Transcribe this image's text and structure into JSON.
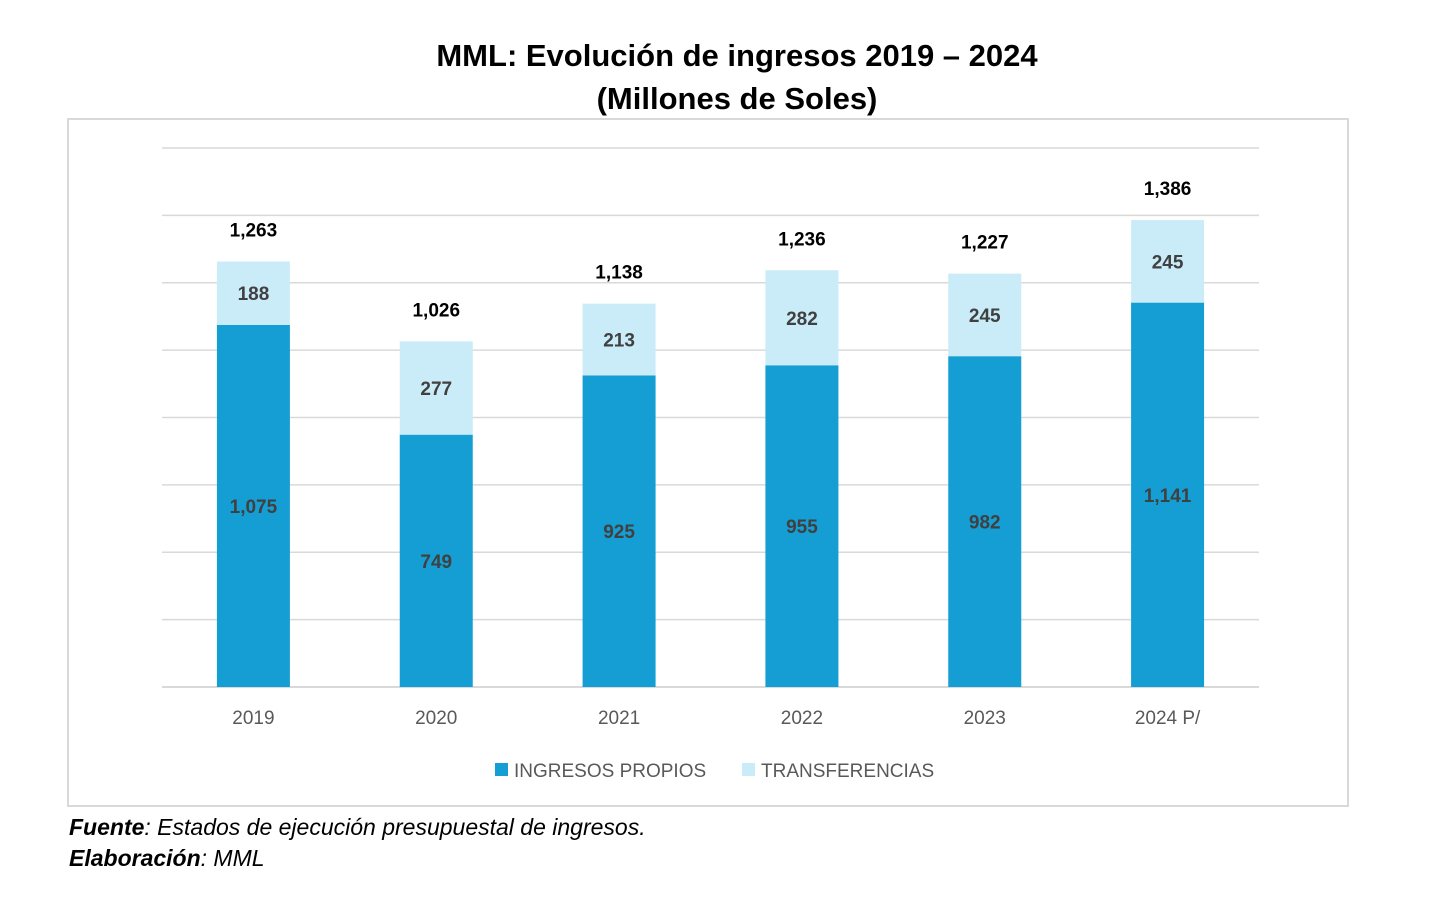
{
  "title_line1": "MML: Evolución de ingresos 2019 – 2024",
  "title_line2": "(Millones de Soles)",
  "footer": {
    "source_label": "Fuente",
    "source_text": ": Estados de ejecución presupuestal de ingresos.",
    "credit_label": "Elaboración",
    "credit_text": ": MML"
  },
  "colors": {
    "propios": "#159ed3",
    "transferencias": "#c9ecf8",
    "grid": "#d9d9d9",
    "inner_label": "#404040",
    "total_label": "#000000",
    "tick_label": "#595959"
  },
  "chart_data": {
    "type": "bar",
    "stacked": true,
    "categories": [
      "2019",
      "2020",
      "2021",
      "2022",
      "2023",
      "2024 P/"
    ],
    "series": [
      {
        "name": "INGRESOS PROPIOS",
        "values": [
          1075,
          749,
          925,
          955,
          982,
          1141
        ],
        "labels": [
          "1,075",
          "749",
          "925",
          "955",
          "982",
          "1,141"
        ]
      },
      {
        "name": "TRANSFERENCIAS",
        "values": [
          188,
          277,
          213,
          282,
          245,
          245
        ],
        "labels": [
          "188",
          "277",
          "213",
          "282",
          "245",
          "245"
        ]
      }
    ],
    "totals": [
      1263,
      1026,
      1138,
      1236,
      1227,
      1386
    ],
    "total_labels": [
      "1,263",
      "1,026",
      "1,138",
      "1,236",
      "1,227",
      "1,386"
    ],
    "ylim": [
      0,
      1600
    ],
    "y_gridline_step": 200,
    "y_ticks_visible": false,
    "grid": true,
    "legend_position": "bottom"
  }
}
